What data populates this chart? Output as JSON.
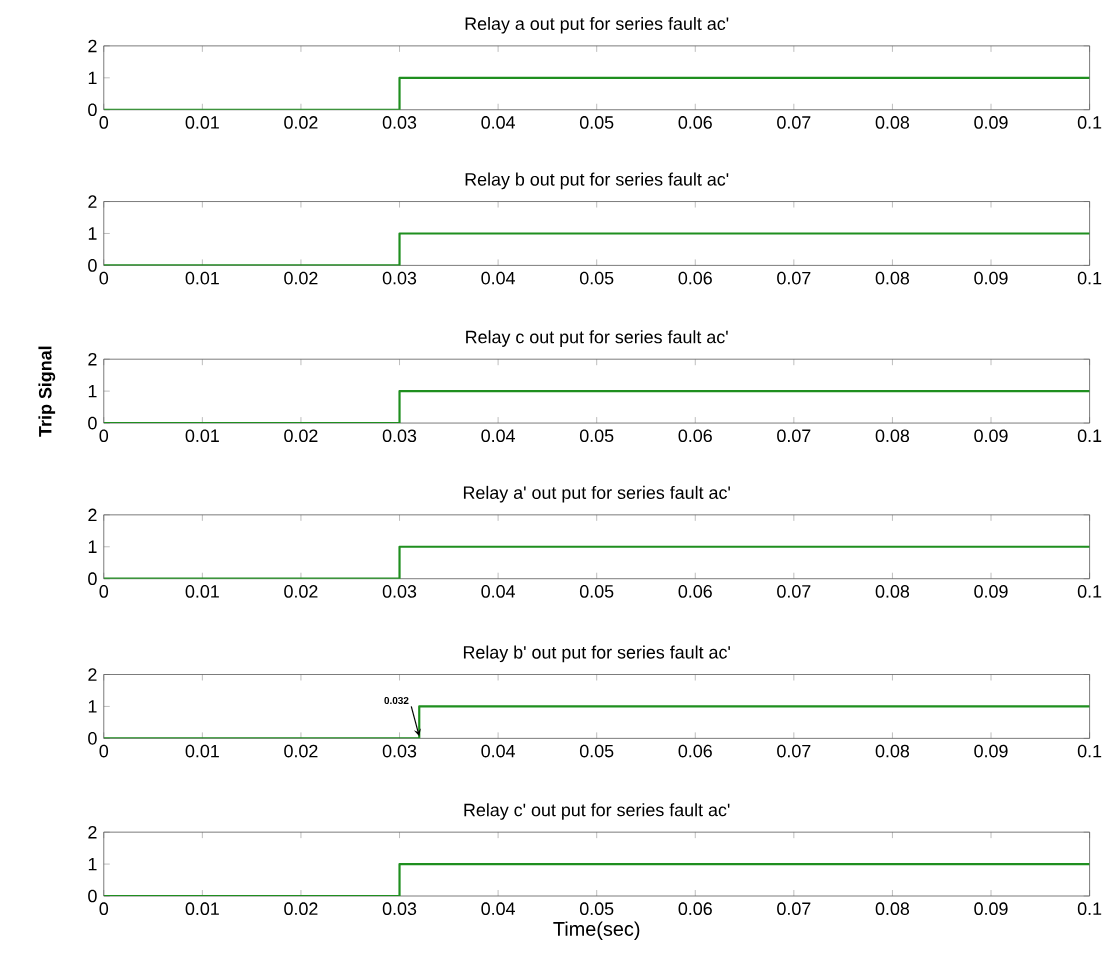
{
  "chart_data": [
    {
      "type": "step",
      "title": "Relay a  out put for series fault ac'",
      "x": [
        0,
        0.03,
        0.1
      ],
      "series": [
        {
          "color": "#1f8f1f",
          "values": [
            0,
            1,
            1
          ]
        }
      ],
      "xlim": [
        0,
        0.1
      ],
      "ylim": [
        0,
        2
      ],
      "xticks": [
        0,
        0.01,
        0.02,
        0.03,
        0.04,
        0.05,
        0.06,
        0.07,
        0.08,
        0.09,
        0.1
      ],
      "yticks": [
        0,
        1,
        2
      ]
    },
    {
      "type": "step",
      "title": "Relay b  out put for series fault ac'",
      "x": [
        0,
        0.03,
        0.1
      ],
      "series": [
        {
          "color": "#1f8f1f",
          "values": [
            0,
            1,
            1
          ]
        }
      ],
      "xlim": [
        0,
        0.1
      ],
      "ylim": [
        0,
        2
      ],
      "xticks": [
        0,
        0.01,
        0.02,
        0.03,
        0.04,
        0.05,
        0.06,
        0.07,
        0.08,
        0.09,
        0.1
      ],
      "yticks": [
        0,
        1,
        2
      ]
    },
    {
      "type": "step",
      "title": "Relay c  out put for series fault ac'",
      "ylabel": "Trip Signal",
      "x": [
        0,
        0.03,
        0.1
      ],
      "series": [
        {
          "color": "#1f8f1f",
          "values": [
            0,
            1,
            1
          ]
        }
      ],
      "xlim": [
        0,
        0.1
      ],
      "ylim": [
        0,
        2
      ],
      "xticks": [
        0,
        0.01,
        0.02,
        0.03,
        0.04,
        0.05,
        0.06,
        0.07,
        0.08,
        0.09,
        0.1
      ],
      "yticks": [
        0,
        1,
        2
      ]
    },
    {
      "type": "step",
      "title": "Relay a'  out put for series fault ac'",
      "x": [
        0,
        0.03,
        0.1
      ],
      "series": [
        {
          "color": "#1f8f1f",
          "values": [
            0,
            1,
            1
          ]
        }
      ],
      "xlim": [
        0,
        0.1
      ],
      "ylim": [
        0,
        2
      ],
      "xticks": [
        0,
        0.01,
        0.02,
        0.03,
        0.04,
        0.05,
        0.06,
        0.07,
        0.08,
        0.09,
        0.1
      ],
      "yticks": [
        0,
        1,
        2
      ]
    },
    {
      "type": "step",
      "title": "Relay b'  out put for series fault ac'",
      "x": [
        0,
        0.032,
        0.1
      ],
      "series": [
        {
          "color": "#1f8f1f",
          "values": [
            0,
            1,
            1
          ]
        }
      ],
      "xlim": [
        0,
        0.1
      ],
      "ylim": [
        0,
        2
      ],
      "xticks": [
        0,
        0.01,
        0.02,
        0.03,
        0.04,
        0.05,
        0.06,
        0.07,
        0.08,
        0.09,
        0.1
      ],
      "yticks": [
        0,
        1,
        2
      ],
      "annotations": [
        {
          "text": "0.032",
          "x": 0.032,
          "y": 0
        }
      ]
    },
    {
      "type": "step",
      "title": "Relay c'  out put for series fault ac'",
      "xlabel": "Time(sec)",
      "x": [
        0,
        0.03,
        0.1
      ],
      "series": [
        {
          "color": "#1f8f1f",
          "values": [
            0,
            1,
            1
          ]
        }
      ],
      "xlim": [
        0,
        0.1
      ],
      "ylim": [
        0,
        2
      ],
      "xticks": [
        0,
        0.01,
        0.02,
        0.03,
        0.04,
        0.05,
        0.06,
        0.07,
        0.08,
        0.09,
        0.1
      ],
      "yticks": [
        0,
        1,
        2
      ]
    }
  ]
}
